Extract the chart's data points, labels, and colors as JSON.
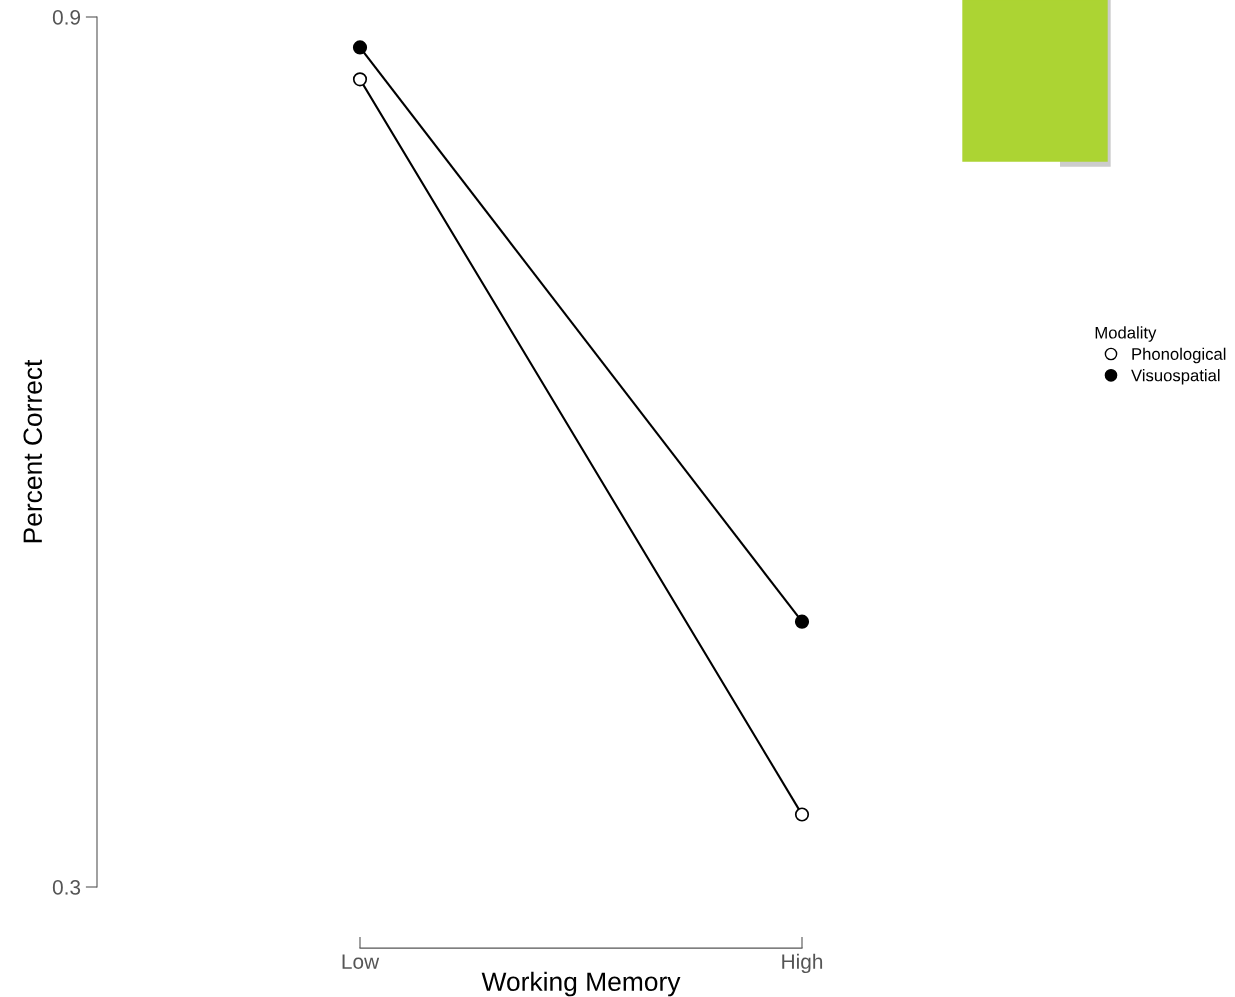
{
  "chart_data": {
    "type": "line",
    "xlabel": "Working Memory",
    "ylabel": "Percent Correct",
    "legend_title": "Modality",
    "categories": [
      "Low",
      "High"
    ],
    "series": [
      {
        "name": "Phonological",
        "color": "#000000",
        "values": [
          0.857,
          0.35
        ],
        "marker": "circle-open"
      },
      {
        "name": "Visuospatial",
        "color": "#000000",
        "values": [
          0.879,
          0.483
        ],
        "marker": "circle"
      }
    ],
    "ylim": [
      0.3,
      0.9
    ],
    "yticks": [
      0.9,
      0.3
    ],
    "grid": false,
    "legend": "right",
    "line_style": "solid"
  }
}
